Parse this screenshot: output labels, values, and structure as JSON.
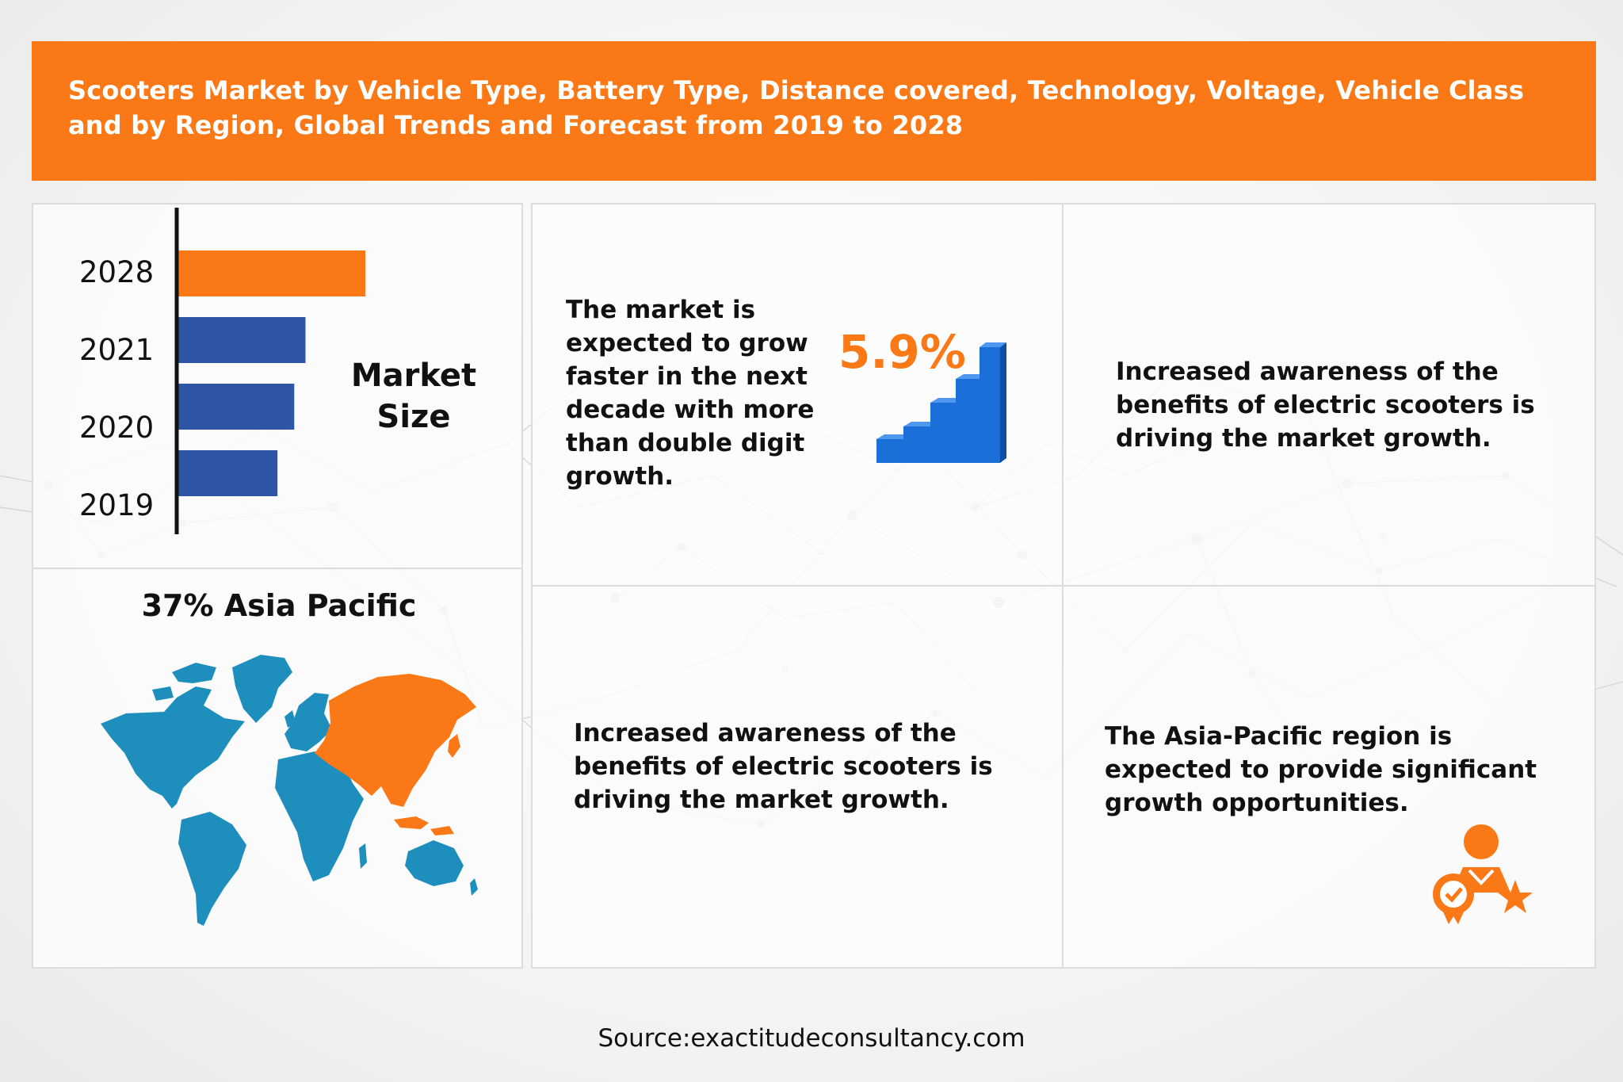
{
  "banner": {
    "title": "Scooters Market by Vehicle Type, Battery Type, Distance covered, Technology, Voltage, Vehicle Class and by Region, Global Trends and Forecast from 2019 to 2028"
  },
  "chart_data": {
    "type": "bar",
    "orientation": "horizontal",
    "categories": [
      "2028",
      "2021",
      "2020",
      "2019"
    ],
    "values": [
      100,
      68,
      62,
      53
    ],
    "value_scale": "relative (no axis values printed)",
    "highlight_category": "2028",
    "colors": {
      "highlight": "#fb7816",
      "default": "#2f55a7"
    },
    "title": "Market Size",
    "xlabel": "",
    "ylabel": "",
    "grid": false,
    "legend": false
  },
  "region": {
    "stat": "37% Asia Pacific",
    "highlight_color": "#fb7816",
    "other_color": "#1e8fbd"
  },
  "growth": {
    "text": "The market is expected to grow faster in the next decade with more than double digit growth.",
    "rate": "5.9%",
    "icon": "rising-bars-icon"
  },
  "awareness_top": {
    "text": "Increased awareness of the benefits of electric scooters is driving the market growth."
  },
  "awareness_bottom": {
    "text": "Increased awareness of the benefits of electric scooters is driving the market growth."
  },
  "asia": {
    "text": "The Asia-Pacific region is expected to provide significant growth opportunities.",
    "icon": "award-person-icon"
  },
  "source": {
    "text": "Source:exactitudeconsultancy.com"
  },
  "colors": {
    "accent": "#fb7816",
    "bar_blue": "#2f55a7",
    "map_blue": "#1e8fbd"
  }
}
